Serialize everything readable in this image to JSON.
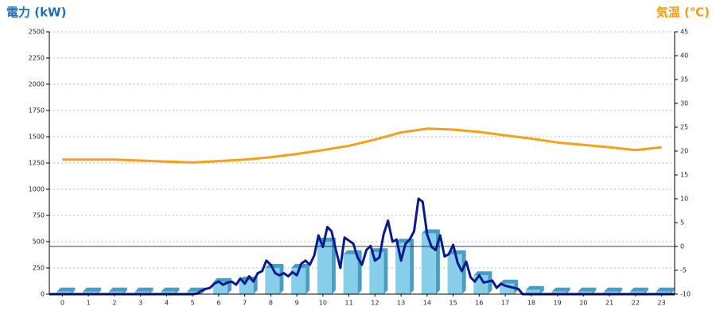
{
  "chart_data": {
    "type": "combo",
    "title_left": "電力 (kW)",
    "title_right": "気温 (℃)",
    "title_left_color": "#1f6fb5",
    "title_right_color": "#f39c12",
    "categories": [
      "0",
      "1",
      "2",
      "3",
      "4",
      "5",
      "6",
      "7",
      "8",
      "9",
      "10",
      "11",
      "12",
      "13",
      "14",
      "15",
      "16",
      "17",
      "18",
      "19",
      "20",
      "21",
      "22",
      "23"
    ],
    "xlim": [
      -0.5,
      23.5
    ],
    "ylim": [
      0,
      2500
    ],
    "yticks": [
      0,
      250,
      500,
      750,
      1000,
      1250,
      1500,
      1750,
      2000,
      2250,
      2500
    ],
    "y2lim": [
      -10,
      45
    ],
    "y2ticks": [
      -10,
      -5,
      0,
      5,
      10,
      15,
      20,
      25,
      30,
      35,
      40,
      45
    ],
    "grid": true,
    "series": [
      {
        "type": "bar",
        "color": "#87ceeb",
        "side_color": "#4a9cc2",
        "values": [
          25,
          25,
          25,
          25,
          25,
          25,
          115,
          130,
          250,
          250,
          500,
          380,
          400,
          490,
          580,
          380,
          180,
          100,
          40,
          25,
          25,
          25,
          25,
          25
        ]
      },
      {
        "type": "line",
        "axis": "y2",
        "color": "#f5a01a",
        "x": [
          0,
          1,
          2,
          3,
          4,
          5,
          6,
          7,
          8,
          9,
          10,
          11,
          12,
          13,
          14,
          15,
          16,
          17,
          18,
          19,
          20,
          21,
          22,
          23
        ],
        "values": [
          18.2,
          18.2,
          18.2,
          18.0,
          17.8,
          17.6,
          17.9,
          18.2,
          18.7,
          19.4,
          20.2,
          21.1,
          22.4,
          23.9,
          24.7,
          24.5,
          24.0,
          23.3,
          22.6,
          21.8,
          21.3,
          20.8,
          20.2,
          20.8
        ]
      },
      {
        "type": "line",
        "color": "#0a1a8c",
        "x": [
          -0.5,
          5,
          5.17,
          5.33,
          5.5,
          5.67,
          5.83,
          6,
          6.17,
          6.33,
          6.5,
          6.67,
          6.83,
          7,
          7.17,
          7.33,
          7.5,
          7.67,
          7.83,
          8,
          8.17,
          8.33,
          8.5,
          8.67,
          8.83,
          9,
          9.17,
          9.33,
          9.5,
          9.67,
          9.83,
          10,
          10.17,
          10.33,
          10.5,
          10.67,
          10.83,
          11,
          11.17,
          11.33,
          11.5,
          11.67,
          11.83,
          12,
          12.17,
          12.33,
          12.5,
          12.67,
          12.83,
          13,
          13.17,
          13.33,
          13.5,
          13.67,
          13.83,
          14,
          14.17,
          14.33,
          14.5,
          14.67,
          14.83,
          15,
          15.17,
          15.33,
          15.5,
          15.67,
          15.83,
          16,
          16.17,
          16.33,
          16.5,
          16.67,
          16.83,
          17,
          17.17,
          17.33,
          17.5,
          17.67,
          23.5
        ],
        "values": [
          0,
          0,
          5,
          30,
          50,
          60,
          100,
          120,
          90,
          110,
          120,
          90,
          150,
          100,
          170,
          120,
          200,
          220,
          320,
          280,
          200,
          180,
          200,
          170,
          210,
          180,
          290,
          320,
          280,
          370,
          560,
          450,
          640,
          600,
          420,
          250,
          540,
          510,
          480,
          350,
          280,
          420,
          460,
          320,
          350,
          570,
          700,
          500,
          520,
          320,
          480,
          520,
          600,
          910,
          880,
          570,
          450,
          420,
          560,
          360,
          380,
          470,
          300,
          220,
          310,
          160,
          120,
          180,
          110,
          120,
          130,
          60,
          100,
          80,
          70,
          60,
          50,
          0,
          0
        ]
      }
    ]
  }
}
